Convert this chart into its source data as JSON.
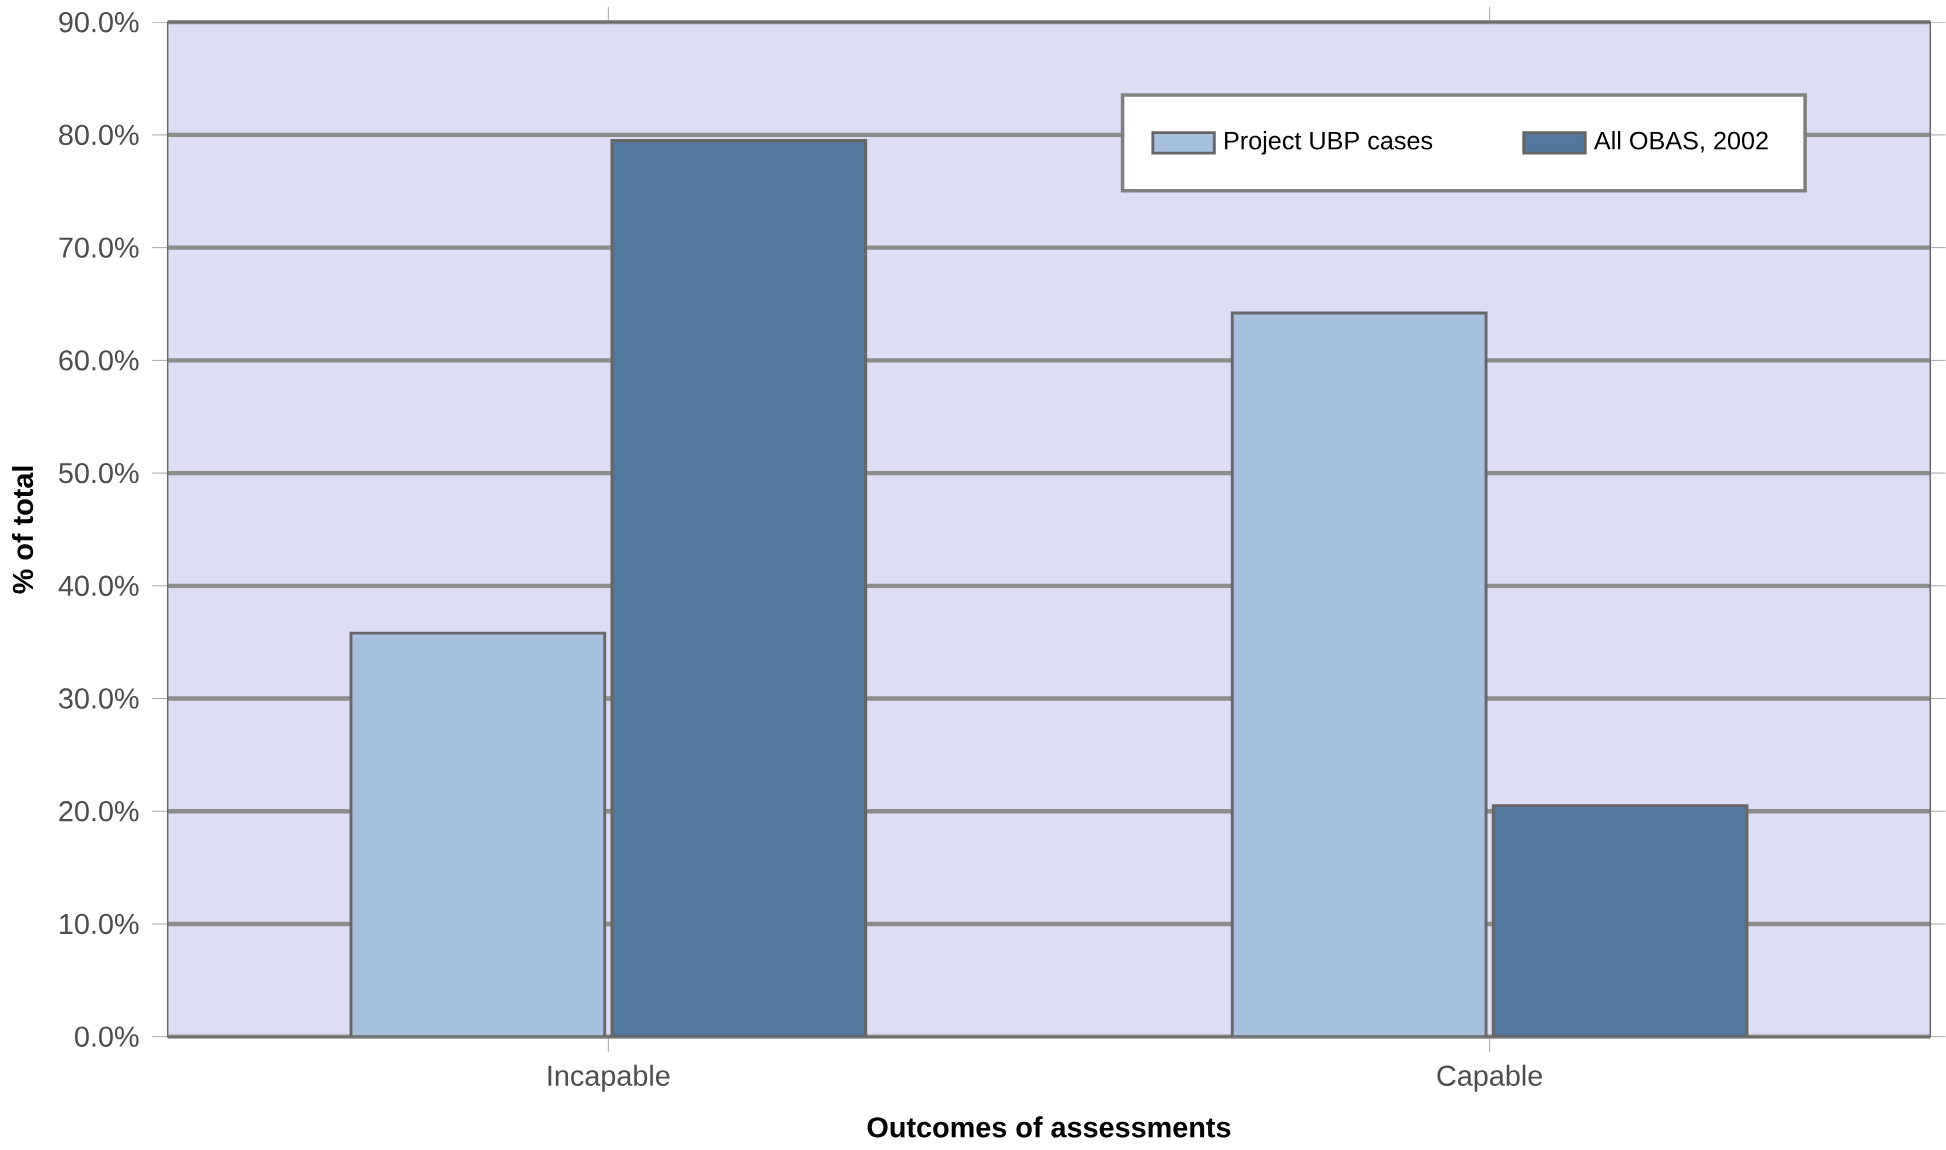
{
  "chart_data": {
    "type": "bar",
    "xlabel": "Outcomes of assessments",
    "ylabel": "% of total",
    "categories": [
      "Incapable",
      "Capable"
    ],
    "series": [
      {
        "name": "Project UBP cases",
        "color": "#a6c0de",
        "values": [
          35.8,
          64.2
        ]
      },
      {
        "name": "All OBAS, 2002",
        "color": "#52789e",
        "values": [
          79.5,
          20.5
        ]
      }
    ],
    "ylim": [
      0,
      90
    ],
    "yticks": [
      {
        "value": 0,
        "label": "0.0%"
      },
      {
        "value": 10,
        "label": "10.0%"
      },
      {
        "value": 20,
        "label": "20.0%"
      },
      {
        "value": 30,
        "label": "30.0%"
      },
      {
        "value": 40,
        "label": "40.0%"
      },
      {
        "value": 50,
        "label": "50.0%"
      },
      {
        "value": 60,
        "label": "60.0%"
      },
      {
        "value": 70,
        "label": "70.0%"
      },
      {
        "value": 80,
        "label": "80.0%"
      },
      {
        "value": 90,
        "label": "90.0%"
      }
    ],
    "grid": "y",
    "legend": "top right"
  }
}
